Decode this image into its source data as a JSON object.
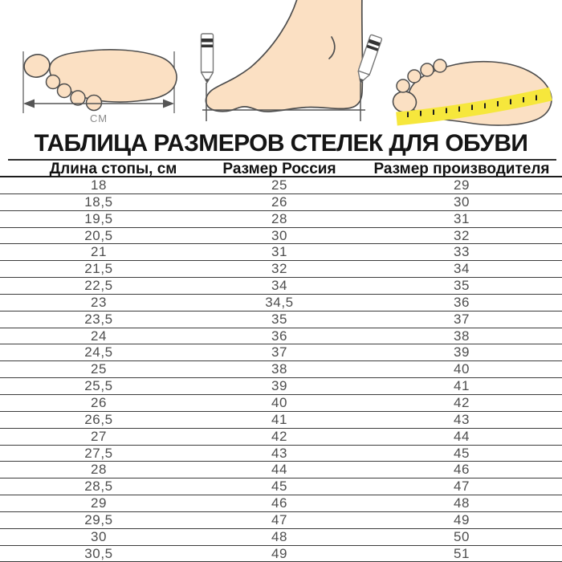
{
  "title": "ТАБЛИЦА РАЗМЕРОВ СТЕЛЕК ДЛЯ ОБУВИ",
  "illustrations": {
    "cm_label": "СМ",
    "colors": {
      "skin": "#FBE0C3",
      "outline": "#4d4d4d",
      "tape_yellow": "#F6E73C",
      "measure_gray": "#6b6b6b"
    }
  },
  "table": {
    "columns": [
      "Длина стопы, см",
      "Размер Россия",
      "Размер производителя"
    ],
    "rows": [
      [
        "18",
        "25",
        "29"
      ],
      [
        "18,5",
        "26",
        "30"
      ],
      [
        "19,5",
        "28",
        "31"
      ],
      [
        "20,5",
        "30",
        "32"
      ],
      [
        "21",
        "31",
        "33"
      ],
      [
        "21,5",
        "32",
        "34"
      ],
      [
        "22,5",
        "34",
        "35"
      ],
      [
        "23",
        "34,5",
        "36"
      ],
      [
        "23,5",
        "35",
        "37"
      ],
      [
        "24",
        "36",
        "38"
      ],
      [
        "24,5",
        "37",
        "39"
      ],
      [
        "25",
        "38",
        "40"
      ],
      [
        "25,5",
        "39",
        "41"
      ],
      [
        "26",
        "40",
        "42"
      ],
      [
        "26,5",
        "41",
        "43"
      ],
      [
        "27",
        "42",
        "44"
      ],
      [
        "27,5",
        "43",
        "45"
      ],
      [
        "28",
        "44",
        "46"
      ],
      [
        "28,5",
        "45",
        "47"
      ],
      [
        "29",
        "46",
        "48"
      ],
      [
        "29,5",
        "47",
        "49"
      ],
      [
        "30",
        "48",
        "50"
      ],
      [
        "30,5",
        "49",
        "51"
      ]
    ]
  }
}
